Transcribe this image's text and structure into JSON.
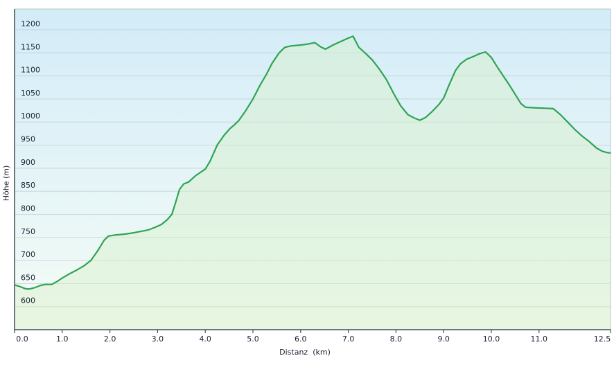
{
  "chart_data": {
    "type": "area",
    "title": "",
    "xlabel": "Distanz  (km)",
    "ylabel": "Höhe (m)",
    "grid": "horizontal",
    "legend": "none",
    "xlim": [
      0,
      12.5
    ],
    "ylim": [
      550,
      1245
    ],
    "x_ticks": [
      0,
      1,
      2,
      3,
      4,
      5,
      6,
      7,
      8,
      9,
      10,
      11,
      12.5
    ],
    "x_tick_labels": [
      "0.0",
      "1.0",
      "2.0",
      "3.0",
      "4.0",
      "5.0",
      "6.0",
      "7.0",
      "8.0",
      "9.0",
      "10.0",
      "11.0",
      "12.5"
    ],
    "y_gridlines": [
      600,
      650,
      700,
      750,
      800,
      850,
      900,
      950,
      1000,
      1050,
      1100,
      1150,
      1200
    ],
    "y_gridline_labels": [
      "600",
      "650",
      "700",
      "750",
      "800",
      "850",
      "900",
      "950",
      "1000",
      "1050",
      "1100",
      "1150",
      "1200"
    ],
    "x": [
      0.0,
      0.1,
      0.22,
      0.3,
      0.42,
      0.55,
      0.65,
      0.78,
      0.9,
      1.0,
      1.15,
      1.3,
      1.45,
      1.6,
      1.75,
      1.88,
      1.97,
      2.1,
      2.3,
      2.5,
      2.65,
      2.8,
      2.95,
      3.08,
      3.2,
      3.3,
      3.38,
      3.46,
      3.55,
      3.65,
      3.8,
      4.0,
      4.1,
      4.25,
      4.4,
      4.52,
      4.6,
      4.7,
      4.85,
      5.0,
      5.15,
      5.28,
      5.4,
      5.55,
      5.67,
      5.8,
      6.0,
      6.15,
      6.3,
      6.42,
      6.52,
      6.68,
      6.85,
      7.0,
      7.1,
      7.22,
      7.35,
      7.5,
      7.65,
      7.8,
      7.95,
      8.1,
      8.25,
      8.4,
      8.5,
      8.62,
      8.75,
      8.9,
      9.0,
      9.12,
      9.25,
      9.35,
      9.48,
      9.62,
      9.75,
      9.88,
      10.0,
      10.12,
      10.25,
      10.38,
      10.5,
      10.62,
      10.72,
      10.9,
      11.1,
      11.3,
      11.45,
      11.6,
      11.75,
      11.9,
      12.05,
      12.2,
      12.32,
      12.42,
      12.5
    ],
    "y": [
      647,
      644,
      639,
      638,
      641,
      646,
      648,
      648,
      655,
      662,
      671,
      679,
      688,
      700,
      722,
      744,
      753,
      755,
      757,
      760,
      763,
      766,
      772,
      778,
      788,
      800,
      826,
      854,
      866,
      870,
      884,
      898,
      915,
      950,
      972,
      986,
      993,
      1003,
      1025,
      1050,
      1080,
      1103,
      1127,
      1150,
      1162,
      1165,
      1167,
      1169,
      1172,
      1163,
      1158,
      1167,
      1175,
      1182,
      1186,
      1162,
      1150,
      1135,
      1115,
      1092,
      1062,
      1035,
      1016,
      1008,
      1004,
      1010,
      1022,
      1038,
      1052,
      1082,
      1112,
      1126,
      1136,
      1142,
      1148,
      1152,
      1140,
      1120,
      1100,
      1080,
      1060,
      1040,
      1032,
      1031,
      1030,
      1029,
      1016,
      1000,
      984,
      970,
      958,
      944,
      937,
      934,
      933
    ],
    "colors": {
      "line": "#2fa353",
      "area_fill": "rgba(215,240,200,0.45)",
      "plot_bg_top": "#d3ecf8",
      "plot_bg_bottom": "#f5fcf6",
      "gridline": "#aebfc4",
      "border_light": "#b7c4c8",
      "axis_dark": "#454e52",
      "left_border": "#6b787c",
      "text": "#1a2133"
    }
  }
}
